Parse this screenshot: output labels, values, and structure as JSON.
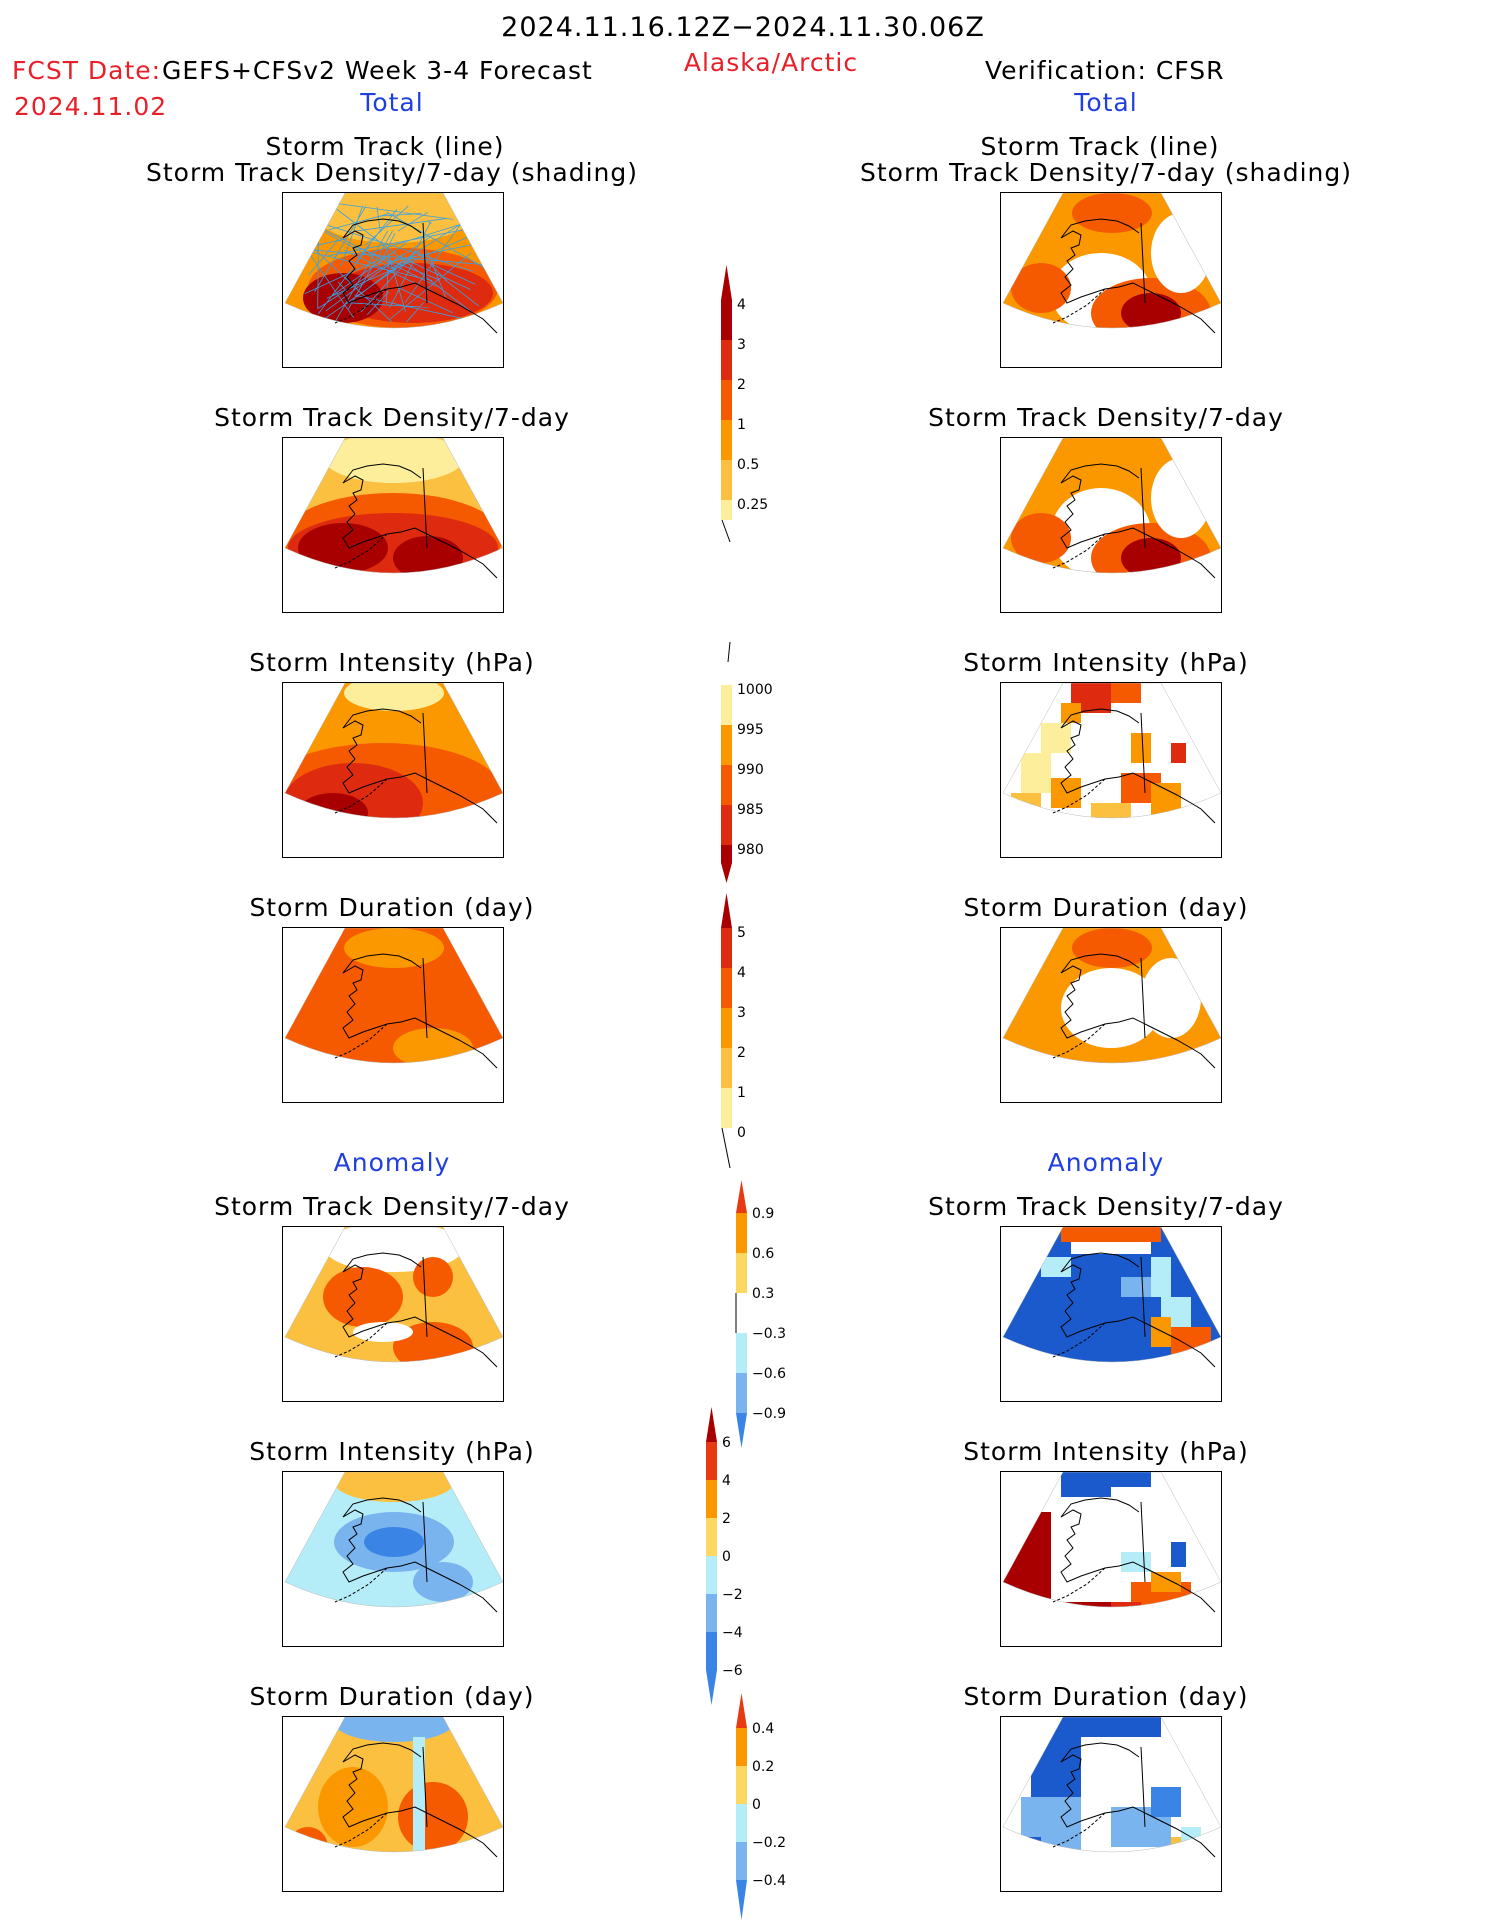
{
  "header": {
    "period": "2024.11.16.12Z−2024.11.30.06Z",
    "fcst_label": "FCST Date:",
    "fcst_model": "GEFS+CFSv2 Week 3-4 Forecast",
    "fcst_date": "2024.11.02",
    "region": "Alaska/Arctic",
    "verification": "Verification: CFSR",
    "left_total": "Total",
    "right_total": "Total",
    "left_anomaly": "Anomaly",
    "right_anomaly": "Anomaly"
  },
  "panels": {
    "track_title_1": "Storm Track (line)",
    "track_title_2": "Storm Track Density/7-day (shading)",
    "density": "Storm Track Density/7-day",
    "intensity": "Storm Intensity (hPa)",
    "duration": "Storm Duration (day)"
  },
  "colorbars": {
    "density_total": [
      "4",
      "3",
      "2",
      "1",
      "0.5",
      "0.25"
    ],
    "intensity_total": [
      "1000",
      "995",
      "990",
      "985",
      "980"
    ],
    "duration_total": [
      "5",
      "4",
      "3",
      "2",
      "1",
      "0"
    ],
    "density_anom": [
      "0.9",
      "0.6",
      "0.3",
      "−0.3",
      "−0.6",
      "−0.9"
    ],
    "intensity_anom": [
      "6",
      "4",
      "2",
      "0",
      "−2",
      "−4",
      "−6"
    ],
    "duration_anom": [
      "0.4",
      "0.2",
      "0",
      "−0.2",
      "−0.4"
    ]
  },
  "colors": {
    "dark_red": "#a80000",
    "red": "#de2a0e",
    "orange_red": "#f55a00",
    "orange": "#fb9800",
    "light_orange": "#fbc040",
    "yellow": "#fcee9a",
    "light_blue": "#b4ecf8",
    "mid_blue": "#7ab4ee",
    "blue": "#3a84e6",
    "dark_blue": "#1a5acc",
    "track_line": "#3aa0e0"
  }
}
